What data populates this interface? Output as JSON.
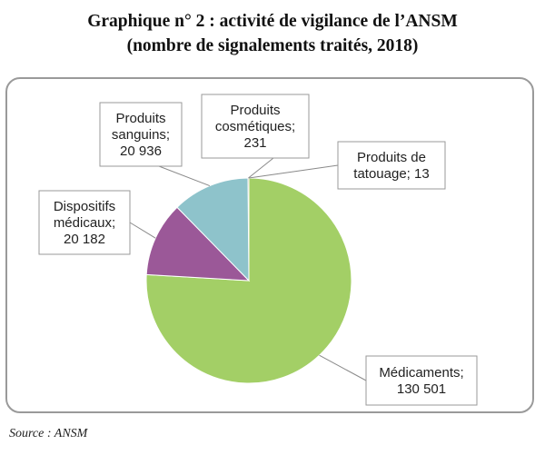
{
  "title": {
    "line1": "Graphique n° 2 : activité de vigilance de l’ANSM",
    "line2": "(nombre de signalements traités, 2018)"
  },
  "source": "Source : ANSM",
  "chart_data": {
    "type": "pie",
    "title": "Graphique n° 2 : activité de vigilance de l’ANSM (nombre de signalements traités, 2018)",
    "slices": [
      {
        "label": "Médicaments",
        "value": 130501,
        "display": "130 501",
        "color": "#a3cf66",
        "label_lines": [
          "Médicaments;",
          "130 501"
        ]
      },
      {
        "label": "Dispositifs médicaux",
        "value": 20182,
        "display": "20 182",
        "color": "#9b5898",
        "label_lines": [
          "Dispositifs",
          "médicaux;",
          "20 182"
        ]
      },
      {
        "label": "Produits sanguins",
        "value": 20936,
        "display": "20 936",
        "color": "#8ec3cb",
        "label_lines": [
          "Produits",
          "sanguins;",
          "20 936"
        ]
      },
      {
        "label": "Produits cosmétiques",
        "value": 231,
        "display": "231",
        "color": "#c9b98f",
        "label_lines": [
          "Produits",
          "cosmétiques;",
          "231"
        ]
      },
      {
        "label": "Produits de tatouage",
        "value": 13,
        "display": "13",
        "color": "#6b7a8f",
        "label_lines": [
          "Produits de",
          "tatouage; 13"
        ]
      }
    ],
    "start_angle": "12 o'clock",
    "direction": "clockwise",
    "legend": "none",
    "data_labels": "callout boxes"
  }
}
